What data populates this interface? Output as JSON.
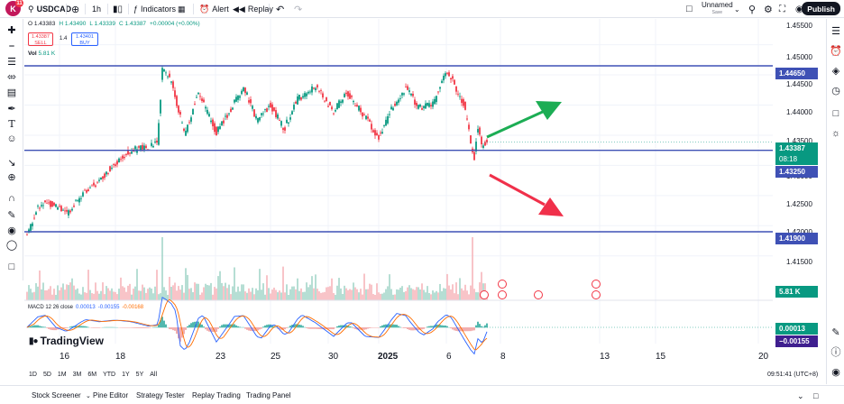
{
  "toolbar": {
    "avatar_letter": "K",
    "notification_count": "11",
    "symbol": "USDCAD",
    "interval": "1h",
    "indicators_label": "Indicators",
    "alert_label": "Alert",
    "replay_label": "Replay",
    "layout_name": "Unnamed",
    "layout_status": "Save",
    "publish_label": "Publish"
  },
  "legend": {
    "open": "O 1.43383",
    "high": "H 1.43490",
    "low": "L 1.43339",
    "close": "C 1.43387",
    "change": "+0.00004 (+0.00%)",
    "sell_price": "1.43387",
    "sell_label": "SELL",
    "spread": "1.4",
    "buy_price": "1.43401",
    "buy_label": "BUY",
    "volume_label": "Vol",
    "volume_value": "5.81 K"
  },
  "price_axis": {
    "ticks": [
      "1.45500",
      "1.45000",
      "1.44500",
      "1.44000",
      "1.43500",
      "1.43000",
      "1.42500",
      "1.42000",
      "1.41500"
    ],
    "ticks_low": "0",
    "tags": {
      "upper_line": "1.44650",
      "current_price": "1.43387",
      "countdown": "08:18",
      "middle_line": "1.43250",
      "lower_line": "1.41900",
      "volume": "5.81 K",
      "macd_value": "0.00013",
      "macd_signal": "−0.00155"
    }
  },
  "macd": {
    "label": "MACD 12 26 close",
    "hist": "0.00013",
    "macd": "-0.00155",
    "signal": "-0.00168"
  },
  "logo_text": "TradingView",
  "date_axis": [
    "16",
    "18",
    "23",
    "25",
    "30",
    "2025",
    "6",
    "8",
    "13",
    "15",
    "20"
  ],
  "ranges": [
    "1D",
    "5D",
    "1M",
    "3M",
    "6M",
    "YTD",
    "1Y",
    "5Y",
    "All"
  ],
  "clock": "09:51:41 (UTC+8)",
  "bottom_tabs": [
    "Stock Screener",
    "Pine Editor",
    "Strategy Tester",
    "Replay Trading",
    "Trading Panel"
  ],
  "colors": {
    "up": "#089981",
    "down": "#f23645",
    "hline": "#3f51b5",
    "macd": "#2962ff",
    "signal": "#ff6d00",
    "arrow_up": "#1cad54",
    "arrow_down": "#f0304a"
  }
}
